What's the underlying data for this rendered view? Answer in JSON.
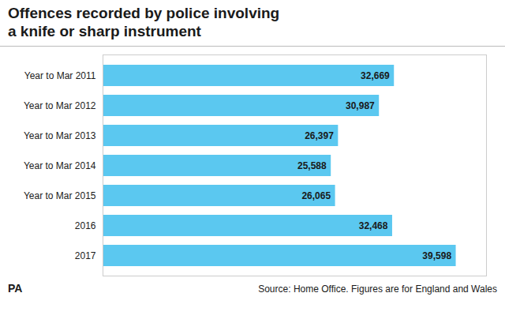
{
  "chart_data": {
    "type": "bar",
    "orientation": "horizontal",
    "title": "Offences recorded by police involving\na knife or sharp instrument",
    "categories": [
      "Year to Mar 2011",
      "Year to Mar 2012",
      "Year to Mar 2013",
      "Year to Mar 2014",
      "Year to Mar 2015",
      "2016",
      "2017"
    ],
    "values": [
      32669,
      30987,
      26397,
      25588,
      26065,
      32468,
      39598
    ],
    "value_labels": [
      "32,669",
      "30,987",
      "26,397",
      "25,588",
      "26,065",
      "32,468",
      "39,598"
    ],
    "data_labels": true,
    "color": "#5bc8f0",
    "xlim": [
      0,
      43000
    ],
    "grid": false,
    "tick_labels": "y",
    "annotations": [
      "PA",
      "Source: Home Office. Figures are for England and Wales"
    ]
  }
}
